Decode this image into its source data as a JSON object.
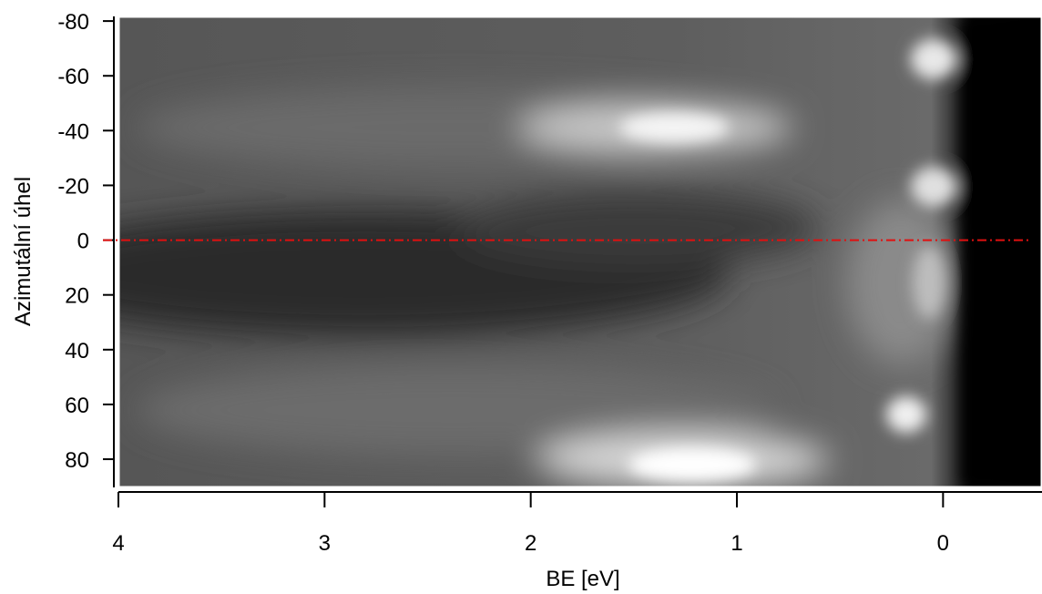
{
  "chart_data": {
    "type": "heatmap",
    "xlabel": "BE [eV]",
    "ylabel": "Azimutální úhel",
    "xlim": [
      4,
      -0.48
    ],
    "xticks": [
      4,
      3,
      2,
      1,
      0
    ],
    "ylim": [
      -81.7,
      90.3
    ],
    "yticks": [
      -80,
      -60,
      -40,
      -20,
      0,
      20,
      40,
      60,
      80
    ],
    "reference_line": {
      "y": 0,
      "color": "#e01010"
    }
  }
}
